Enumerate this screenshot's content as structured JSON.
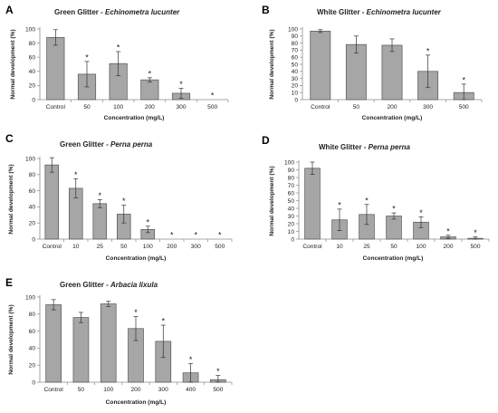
{
  "chart_data": [
    {
      "type": "bar",
      "panel": "A",
      "title_prefix": "Green Glitter -",
      "title_species": "Echinometra lucunter",
      "xlabel": "Concentration (mg/L)",
      "ylabel": "Normal development (%)",
      "ylim": [
        0,
        100
      ],
      "yticks": [
        "0",
        "20",
        "40",
        "60",
        "80",
        "100"
      ],
      "categories": [
        "Control",
        "50",
        "100",
        "200",
        "300",
        "500"
      ],
      "values": [
        88,
        36,
        51,
        28,
        9,
        0
      ],
      "errors": [
        11,
        18,
        17,
        3,
        7,
        0
      ],
      "significant": [
        false,
        true,
        true,
        true,
        true,
        true
      ]
    },
    {
      "type": "bar",
      "panel": "B",
      "title_prefix": "White Glitter -",
      "title_species": "Echinometra lucunter",
      "xlabel": "Concentration (mg/L)",
      "ylabel": "Normal development (%)",
      "ylim": [
        0,
        100
      ],
      "yticks": [
        "0",
        "10",
        "20",
        "30",
        "40",
        "50",
        "60",
        "70",
        "80",
        "90",
        "100"
      ],
      "categories": [
        "Control",
        "50",
        "200",
        "300",
        "500"
      ],
      "values": [
        97,
        78,
        77,
        40,
        10
      ],
      "errors": [
        2,
        12,
        9,
        23,
        12
      ],
      "significant": [
        false,
        false,
        false,
        true,
        true
      ]
    },
    {
      "type": "bar",
      "panel": "C",
      "title_prefix": "Green Glitter -",
      "title_species": "Perna perna",
      "xlabel": "Concentration (mg/L)",
      "ylabel": "Normal development (%)",
      "ylim": [
        0,
        100
      ],
      "yticks": [
        "0",
        "20",
        "40",
        "60",
        "80",
        "100"
      ],
      "categories": [
        "Control",
        "10",
        "25",
        "50",
        "100",
        "200",
        "300",
        "500"
      ],
      "values": [
        92,
        63,
        44,
        31,
        12,
        0,
        0,
        0
      ],
      "errors": [
        9,
        12,
        5,
        11,
        4,
        0,
        0,
        0
      ],
      "significant": [
        false,
        true,
        true,
        true,
        true,
        true,
        true,
        true
      ]
    },
    {
      "type": "bar",
      "panel": "D",
      "title_prefix": "White Glitter -",
      "title_species": "Perna perna",
      "xlabel": "Concentration (mg/L)",
      "ylabel": "Normal development (%)",
      "ylim": [
        0,
        100
      ],
      "yticks": [
        "0",
        "10",
        "20",
        "30",
        "40",
        "50",
        "60",
        "70",
        "80",
        "90",
        "100"
      ],
      "categories": [
        "Control",
        "10",
        "25",
        "50",
        "100",
        "200",
        "500"
      ],
      "values": [
        92,
        25,
        32,
        30,
        22,
        3,
        1
      ],
      "errors": [
        8,
        14,
        13,
        4,
        7,
        2,
        2
      ],
      "significant": [
        false,
        true,
        true,
        true,
        true,
        true,
        true
      ]
    },
    {
      "type": "bar",
      "panel": "E",
      "title_prefix": "Green Glitter -",
      "title_species": "Arbacia lixula",
      "xlabel": "Concentration (mg/L)",
      "ylabel": "Normal development (%)",
      "ylim": [
        0,
        100
      ],
      "yticks": [
        "0",
        "20",
        "40",
        "60",
        "80",
        "100"
      ],
      "categories": [
        "Control",
        "50",
        "100",
        "200",
        "300",
        "400",
        "500"
      ],
      "values": [
        91,
        76,
        92,
        63,
        48,
        11,
        3
      ],
      "errors": [
        6,
        6,
        3,
        14,
        19,
        11,
        5
      ],
      "significant": [
        false,
        false,
        false,
        true,
        true,
        true,
        true
      ]
    }
  ]
}
